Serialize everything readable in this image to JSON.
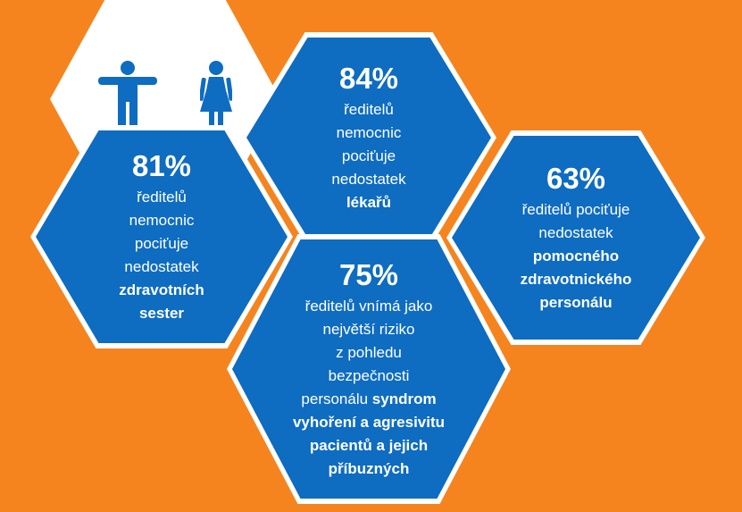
{
  "icons": {
    "male": "male-person-icon",
    "female": "female-person-icon",
    "color": "#0E6CC1"
  },
  "colors": {
    "background": "#F5841F",
    "hexagon": "#0E6CC1",
    "border": "#FFFFFF"
  },
  "stat_81": {
    "percent": "81%",
    "lines": [
      "ředitelů",
      "nemocnic",
      "pociťuje",
      "nedostatek"
    ],
    "bold_lines": [
      "zdravotních",
      "sester"
    ]
  },
  "stat_84": {
    "percent": "84%",
    "lines": [
      "ředitelů",
      "nemocnic",
      "pociťuje",
      "nedostatek"
    ],
    "bold_lines": [
      "lékařů"
    ]
  },
  "stat_63": {
    "percent": "63%",
    "lines": [
      "ředitelů pociťuje",
      "nedostatek"
    ],
    "bold_lines": [
      "pomocného",
      "zdravotnického",
      "personálu"
    ]
  },
  "stat_75": {
    "percent": "75%",
    "lines": [
      "ředitelů vnímá jako",
      "největší riziko",
      "z pohledu",
      "bezpečnosti"
    ],
    "mixed_prefix": "personálu ",
    "mixed_bold": "syndrom",
    "bold_lines": [
      "vyhoření a agresivitu",
      "pacientů a jejich",
      "příbuzných"
    ]
  }
}
